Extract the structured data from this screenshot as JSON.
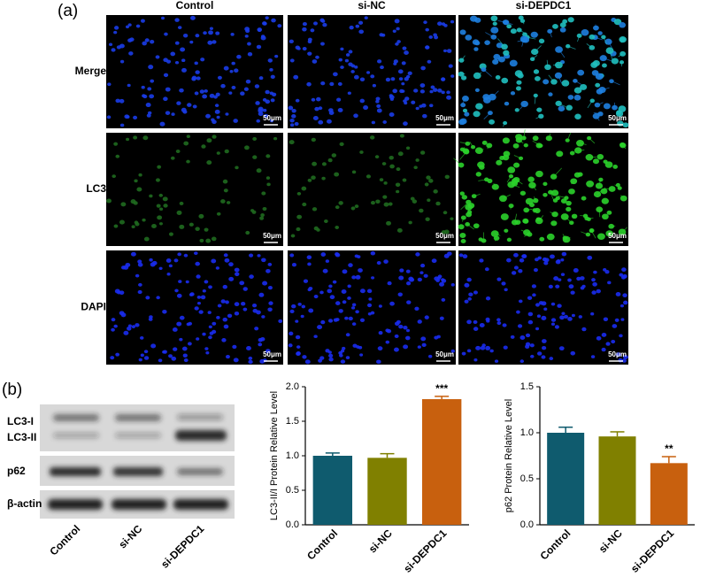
{
  "panel_a": {
    "label": "(a)",
    "columns": [
      "Control",
      "si-NC",
      "si-DEPDC1"
    ],
    "rows": [
      "Merge",
      "LC3",
      "DAPI"
    ],
    "scale_bar": "50μm"
  },
  "panel_b": {
    "label": "(b)",
    "blot_rows": [
      "LC3-I",
      "LC3-II",
      "p62",
      "β-actin"
    ],
    "lanes": [
      "Control",
      "si-NC",
      "si-DEPDC1"
    ]
  },
  "chart_data": [
    {
      "type": "bar",
      "y_label": "LC3-II/I Protein Relative Level",
      "categories": [
        "Control",
        "si-NC",
        "si-DEPDC1"
      ],
      "values": [
        1.0,
        0.97,
        1.82
      ],
      "errors": [
        0.04,
        0.06,
        0.04
      ],
      "colors": [
        "#0f5b6e",
        "#808000",
        "#c8600e"
      ],
      "significance": [
        null,
        null,
        "***"
      ],
      "ylim": [
        0,
        2.0
      ],
      "yticks": [
        {
          "value": 0,
          "label": "0.0"
        },
        {
          "value": 0.5,
          "label": "0.5"
        },
        {
          "value": 1.0,
          "label": "1.0"
        },
        {
          "value": 1.5,
          "label": "1.5"
        },
        {
          "value": 2.0,
          "label": "2.0"
        }
      ]
    },
    {
      "type": "bar",
      "y_label": "p62 Protein Relative Level",
      "categories": [
        "Control",
        "si-NC",
        "si-DEPDC1"
      ],
      "values": [
        1.0,
        0.96,
        0.67
      ],
      "errors": [
        0.06,
        0.05,
        0.07
      ],
      "colors": [
        "#0f5b6e",
        "#808000",
        "#c8600e"
      ],
      "significance": [
        null,
        null,
        "**"
      ],
      "ylim": [
        0,
        1.5
      ],
      "yticks": [
        {
          "value": 0,
          "label": "0.0"
        },
        {
          "value": 0.5,
          "label": "0.5"
        },
        {
          "value": 1.0,
          "label": "1.0"
        },
        {
          "value": 1.5,
          "label": "1.5"
        }
      ]
    }
  ]
}
